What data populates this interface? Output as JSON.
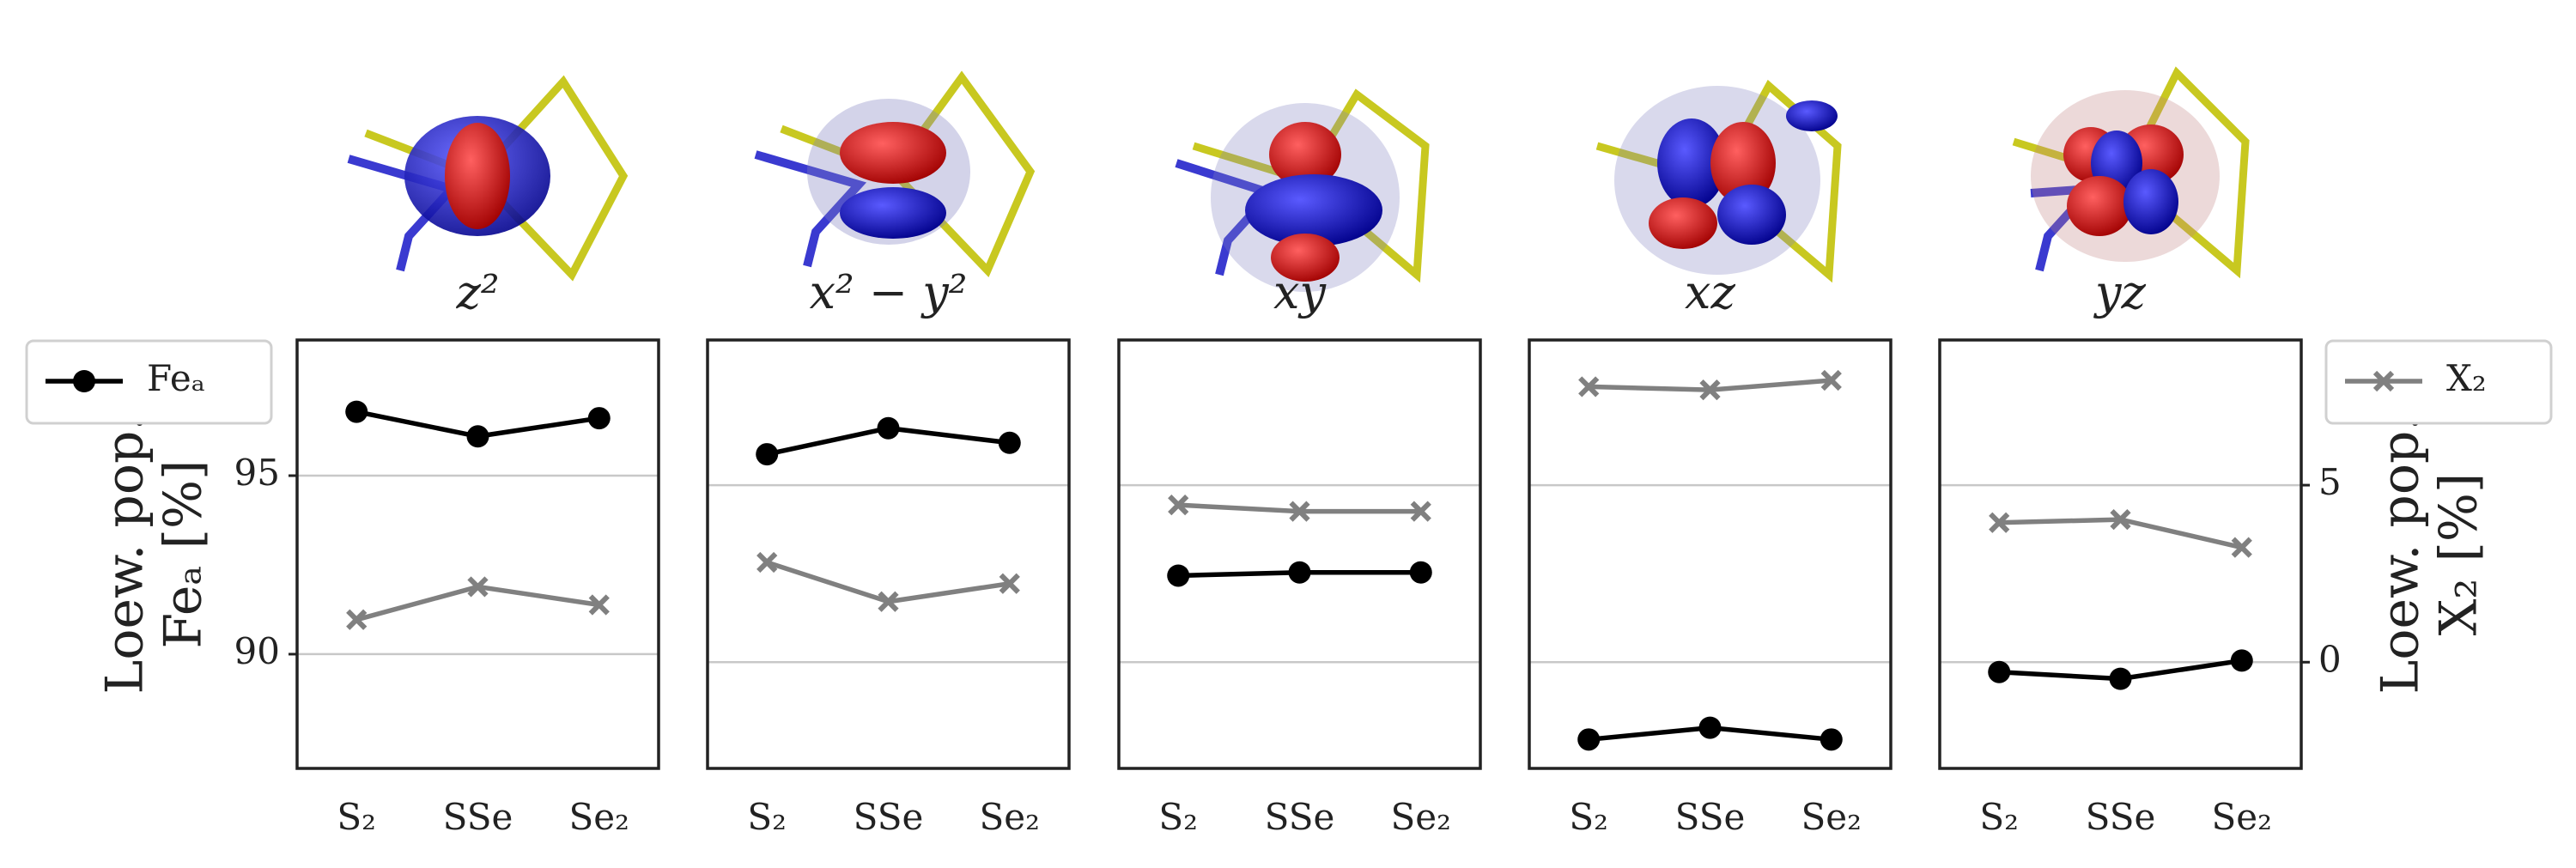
{
  "chart_data": {
    "type": "line",
    "panel_titles": [
      "z²",
      "x² − y²",
      "xy",
      "xz",
      "yz"
    ],
    "categories": [
      "S₂",
      "SSe",
      "Se₂"
    ],
    "series": [
      {
        "name": "Feₐ",
        "color": "#000000",
        "marker": "o",
        "axis": "y",
        "values": [
          [
            96.79,
            96.1,
            96.61
          ],
          [
            95.6,
            96.33,
            95.92
          ],
          [
            92.2,
            92.29,
            92.29
          ],
          [
            87.61,
            87.94,
            87.61
          ],
          [
            89.5,
            89.31,
            89.82
          ]
        ]
      },
      {
        "name": "X₂",
        "color": "#808080",
        "marker": "x",
        "axis": "y2",
        "values": [
          [
            1.2,
            2.13,
            1.62
          ],
          [
            2.82,
            1.71,
            2.22
          ],
          [
            4.44,
            4.26,
            4.26
          ],
          [
            7.78,
            7.69,
            7.96
          ],
          [
            3.94,
            4.03,
            3.24
          ]
        ]
      }
    ],
    "ylabel": [
      "Loew. pop.",
      "Feₐ [%]"
    ],
    "y2label": [
      "Loew. pop.",
      "X₂ [%]"
    ],
    "ylim": [
      86.8,
      98.8
    ],
    "yticks": [
      90,
      95
    ],
    "y2lim": [
      -3.0,
      9.1
    ],
    "y2ticks": [
      0,
      5
    ],
    "grid": true,
    "grid_axis": [
      "y",
      "y2",
      "y2",
      "y2",
      "y2"
    ]
  }
}
